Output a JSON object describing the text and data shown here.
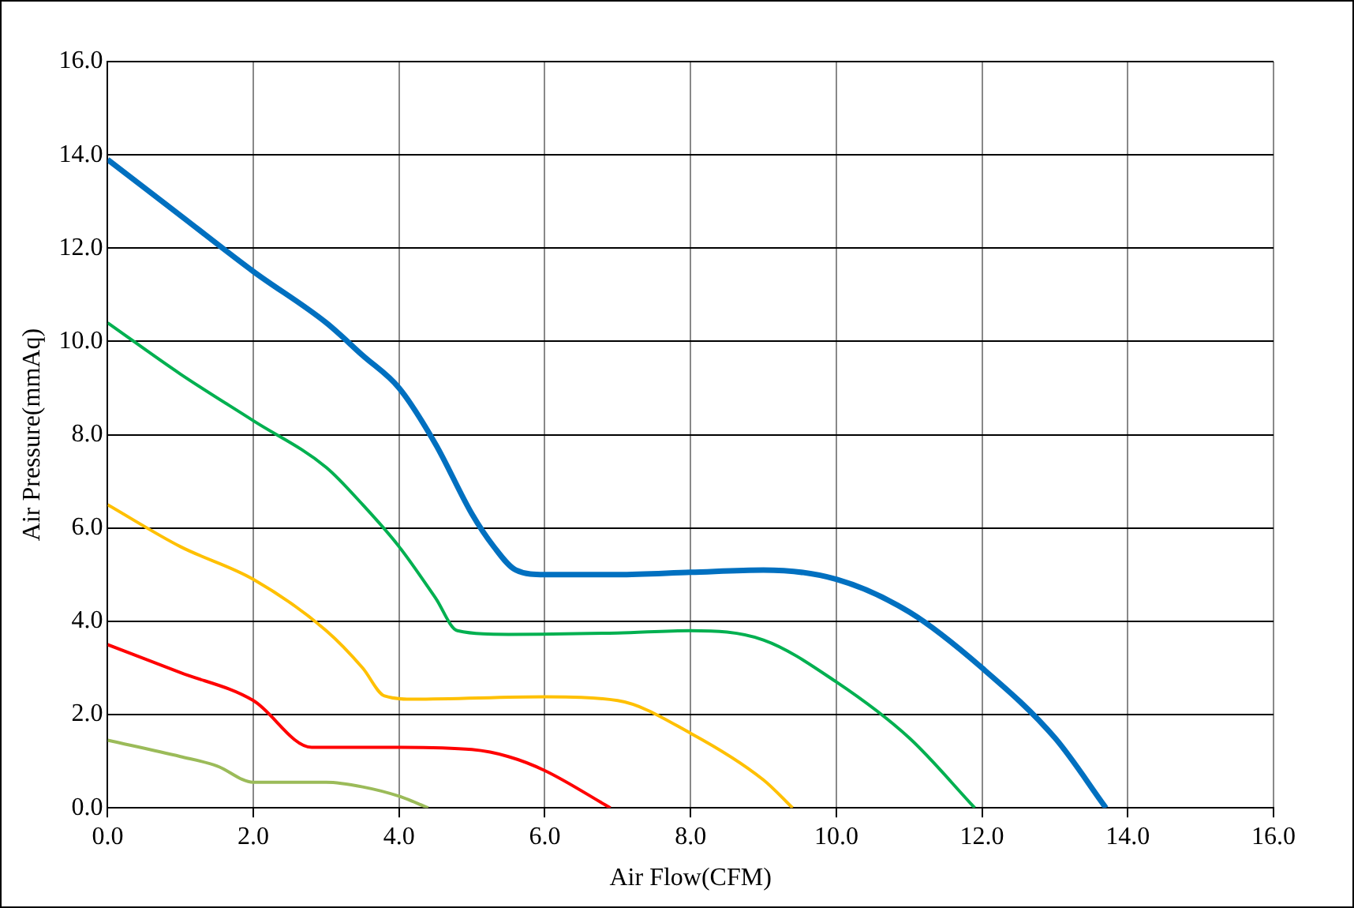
{
  "chart_data": {
    "type": "line",
    "xlabel": "Air Flow(CFM)",
    "ylabel": "Air Pressure(mmAq)",
    "xlim": [
      0,
      16
    ],
    "ylim": [
      0,
      16
    ],
    "xticks": [
      {
        "value": 0,
        "label": "0.0"
      },
      {
        "value": 2,
        "label": "2.0"
      },
      {
        "value": 4,
        "label": "4.0"
      },
      {
        "value": 6,
        "label": "6.0"
      },
      {
        "value": 8,
        "label": "8.0"
      },
      {
        "value": 10,
        "label": "10.0"
      },
      {
        "value": 12,
        "label": "12.0"
      },
      {
        "value": 14,
        "label": "14.0"
      },
      {
        "value": 16,
        "label": "16.0"
      }
    ],
    "yticks": [
      {
        "value": 0,
        "label": "0.0"
      },
      {
        "value": 2,
        "label": "2.0"
      },
      {
        "value": 4,
        "label": "4.0"
      },
      {
        "value": 6,
        "label": "6.0"
      },
      {
        "value": 8,
        "label": "8.0"
      },
      {
        "value": 10,
        "label": "10.0"
      },
      {
        "value": 12,
        "label": "12.0"
      },
      {
        "value": 14,
        "label": "14.0"
      },
      {
        "value": 16,
        "label": "16.0"
      }
    ],
    "grid": true,
    "legend": false,
    "marker": "none",
    "line_style": "solid",
    "series": [
      {
        "color": "#0070c0",
        "x": [
          0,
          1,
          2,
          3,
          3.5,
          4,
          4.5,
          5,
          5.3,
          5.6,
          6,
          7,
          8,
          9,
          10,
          11,
          12,
          13,
          13.7
        ],
        "values": [
          13.9,
          12.7,
          11.5,
          10.4,
          9.7,
          9.0,
          7.8,
          6.3,
          5.6,
          5.1,
          5.0,
          5.0,
          5.05,
          5.1,
          4.9,
          4.2,
          3.0,
          1.5,
          0
        ]
      },
      {
        "color": "#00b050",
        "x": [
          0,
          1,
          2,
          3,
          3.5,
          4,
          4.5,
          4.8,
          5.5,
          7,
          8,
          9,
          10,
          11,
          11.9
        ],
        "values": [
          10.4,
          9.3,
          8.3,
          7.3,
          6.5,
          5.6,
          4.5,
          3.8,
          3.72,
          3.75,
          3.8,
          3.6,
          2.7,
          1.5,
          0
        ]
      },
      {
        "color": "#ffc000",
        "x": [
          0,
          1,
          2,
          3,
          3.5,
          3.8,
          4.2,
          6,
          7,
          8,
          9,
          9.4
        ],
        "values": [
          6.5,
          5.6,
          4.9,
          3.8,
          3.0,
          2.4,
          2.33,
          2.38,
          2.3,
          1.6,
          0.6,
          0
        ]
      },
      {
        "color": "#ff0000",
        "x": [
          0,
          1,
          2,
          2.8,
          4,
          5,
          5.5,
          6,
          6.9
        ],
        "values": [
          3.5,
          2.9,
          2.3,
          1.3,
          1.3,
          1.25,
          1.1,
          0.8,
          0
        ]
      },
      {
        "color": "#9bbb59",
        "x": [
          0,
          1,
          1.5,
          2,
          3,
          3.5,
          4,
          4.4
        ],
        "values": [
          1.45,
          1.1,
          0.9,
          0.55,
          0.55,
          0.45,
          0.25,
          0
        ]
      }
    ]
  }
}
